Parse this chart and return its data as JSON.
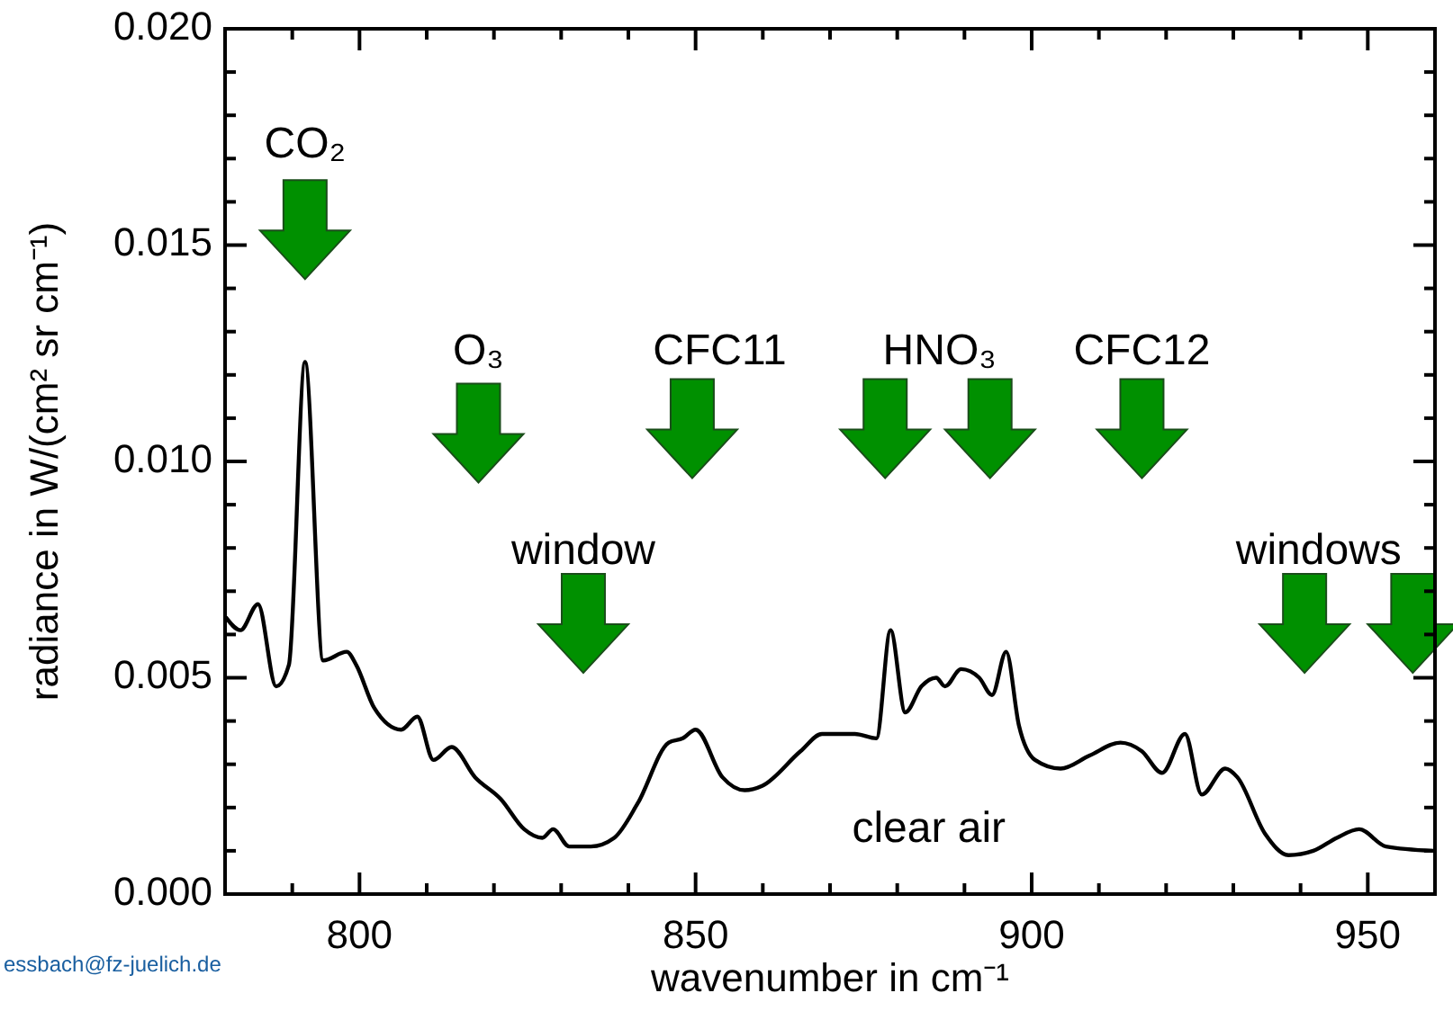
{
  "chart_data": {
    "type": "line",
    "xlabel": "wavenumber in cm⁻¹",
    "ylabel": "radiance in W/(cm² sr cm⁻¹)",
    "xlim": [
      780,
      960
    ],
    "ylim": [
      0,
      0.02
    ],
    "xticks": [
      {
        "value": 790,
        "label": null
      },
      {
        "value": 800,
        "label": "800"
      },
      {
        "value": 810,
        "label": null
      },
      {
        "value": 820,
        "label": null
      },
      {
        "value": 830,
        "label": null
      },
      {
        "value": 840,
        "label": null
      },
      {
        "value": 850,
        "label": "850"
      },
      {
        "value": 860,
        "label": null
      },
      {
        "value": 870,
        "label": null
      },
      {
        "value": 880,
        "label": null
      },
      {
        "value": 890,
        "label": null
      },
      {
        "value": 900,
        "label": "900"
      },
      {
        "value": 910,
        "label": null
      },
      {
        "value": 920,
        "label": null
      },
      {
        "value": 930,
        "label": null
      },
      {
        "value": 940,
        "label": null
      },
      {
        "value": 950,
        "label": "950"
      }
    ],
    "yticks": [
      {
        "value": 0,
        "label": "0.000"
      },
      {
        "value": 0.001,
        "label": null
      },
      {
        "value": 0.002,
        "label": null
      },
      {
        "value": 0.003,
        "label": null
      },
      {
        "value": 0.004,
        "label": null
      },
      {
        "value": 0.005,
        "label": "0.005"
      },
      {
        "value": 0.006,
        "label": null
      },
      {
        "value": 0.007,
        "label": null
      },
      {
        "value": 0.008,
        "label": null
      },
      {
        "value": 0.009,
        "label": null
      },
      {
        "value": 0.01,
        "label": "0.010"
      },
      {
        "value": 0.011,
        "label": null
      },
      {
        "value": 0.012,
        "label": null
      },
      {
        "value": 0.013,
        "label": null
      },
      {
        "value": 0.014,
        "label": null
      },
      {
        "value": 0.015,
        "label": "0.015"
      },
      {
        "value": 0.016,
        "label": null
      },
      {
        "value": 0.017,
        "label": null
      },
      {
        "value": 0.018,
        "label": null
      },
      {
        "value": 0.019,
        "label": null
      },
      {
        "value": 0.02,
        "label": "0.020"
      }
    ],
    "grid": false,
    "line_style": "solid",
    "series": [
      {
        "color": "#000000",
        "x": [
          780.1,
          782.3,
          784.9,
          787.6,
          789.5,
          791.9,
          794.6,
          798.1,
          799.5,
          802.2,
          806.2,
          808.6,
          811,
          813.7,
          817.2,
          821,
          824.5,
          827.2,
          828.8,
          831.2,
          834.4,
          837.9,
          841.4,
          846,
          848.1,
          850,
          854,
          857.3,
          859.9,
          865.6,
          868.8,
          873.7,
          876.9,
          879,
          881.2,
          883.6,
          885.8,
          887.1,
          889.5,
          892.2,
          894.1,
          896.2,
          898.1,
          900.5,
          904.3,
          908.6,
          913.2,
          916.4,
          919.4,
          922.8,
          925.3,
          928.8,
          930.6,
          934.7,
          938.2,
          941.9,
          945.4,
          948.7,
          952.7,
          959.7
        ],
        "values": [
          0.0064,
          0.0061,
          0.0067,
          0.0048,
          0.0053,
          0.0123,
          0.0054,
          0.0056,
          0.0053,
          0.0043,
          0.0038,
          0.0041,
          0.0031,
          0.0034,
          0.0027,
          0.0022,
          0.0015,
          0.0013,
          0.0015,
          0.0011,
          0.0011,
          0.0013,
          0.0021,
          0.0035,
          0.0036,
          0.0038,
          0.0027,
          0.0024,
          0.0025,
          0.0033,
          0.0037,
          0.0037,
          0.0036,
          0.0061,
          0.0042,
          0.0048,
          0.005,
          0.0048,
          0.0052,
          0.005,
          0.0046,
          0.0056,
          0.0039,
          0.0031,
          0.0029,
          0.0032,
          0.0035,
          0.0033,
          0.0028,
          0.0037,
          0.0023,
          0.0029,
          0.0027,
          0.0014,
          0.0009,
          0.001,
          0.0013,
          0.0015,
          0.0011,
          0.001
        ]
      }
    ],
    "annotations": [
      "CO₂",
      "O₃",
      "window",
      "CFC11",
      "HNO₃",
      "CFC12",
      "windows",
      "clear air",
      "essbach@fz-juelich.de"
    ]
  }
}
